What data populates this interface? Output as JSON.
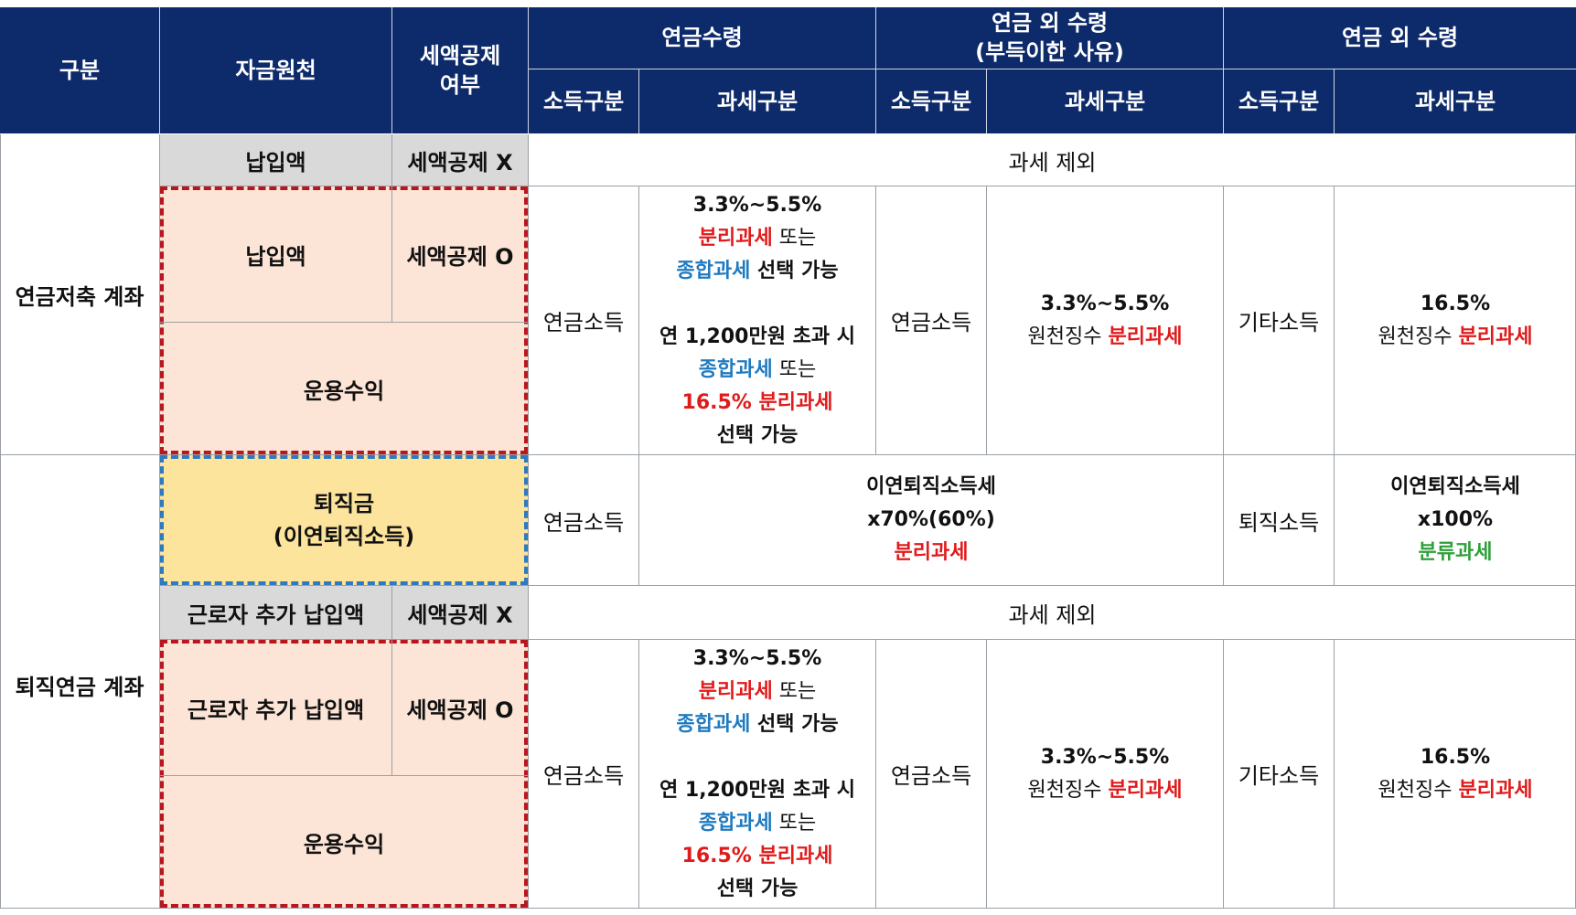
{
  "header": {
    "category": "구분",
    "fund_source": "자금원천",
    "tax_credit": "세액공제\n여부",
    "pension_receipt": "연금수령",
    "non_pension_unavoidable": "연금 외 수령\n(부득이한 사유)",
    "non_pension": "연금 외 수령",
    "income_type": "소득구분",
    "tax_type": "과세구분"
  },
  "section1": {
    "name": "연금저축 계좌",
    "row_a": {
      "source": "납입액",
      "credit": "세액공제 X",
      "tax": "과세 제외"
    },
    "row_b": {
      "source": "납입액",
      "credit": "세액공제 O"
    },
    "row_c": {
      "source": "운용수익"
    },
    "pension_income": "연금소득",
    "tax1": {
      "l1": "3.3%~5.5%",
      "l2a": "분리과세",
      "l2b": " 또는",
      "l3a": "종합과세",
      "l3b": " 선택 가능",
      "l4": "연 1,200만원 초과 시",
      "l5a": "종합과세",
      "l5b": " 또는",
      "l6": "16.5% 분리과세",
      "l7": "선택 가능"
    },
    "unavoidable_income": "연금소득",
    "tax2": {
      "l1": "3.3%~5.5%",
      "l2a": "원천징수 ",
      "l2b": "분리과세"
    },
    "other_income": "기타소득",
    "tax3": {
      "l1": "16.5%",
      "l2a": "원천징수 ",
      "l2b": "분리과세"
    }
  },
  "section2": {
    "name": "퇴직연금 계좌",
    "severance": {
      "l1": "퇴직금",
      "l2": "(이연퇴직소득)"
    },
    "severance_income": "연금소득",
    "severance_tax": {
      "l1": "이연퇴직소득세",
      "l2": "x70%(60%)",
      "l3": "분리과세"
    },
    "retirement_income": "퇴직소득",
    "retirement_tax": {
      "l1": "이연퇴직소득세",
      "l2": "x100%",
      "l3": "분류과세"
    },
    "row_a": {
      "source": "근로자 추가 납입액",
      "credit": "세액공제 X",
      "tax": "과세 제외"
    },
    "row_b": {
      "source": "근로자 추가 납입액",
      "credit": "세액공제 O"
    },
    "row_c": {
      "source": "운용수익"
    },
    "pension_income": "연금소득",
    "tax1": {
      "l1": "3.3%~5.5%",
      "l2a": "분리과세",
      "l2b": " 또는",
      "l3a": "종합과세",
      "l3b": " 선택 가능",
      "l4": "연 1,200만원 초과 시",
      "l5a": "종합과세",
      "l5b": " 또는",
      "l6": "16.5% 분리과세",
      "l7": "선택 가능"
    },
    "unavoidable_income": "연금소득",
    "tax2": {
      "l1": "3.3%~5.5%",
      "l2a": "원천징수 ",
      "l2b": "분리과세"
    },
    "other_income": "기타소득",
    "tax3": {
      "l1": "16.5%",
      "l2a": "원천징수 ",
      "l2b": "분리과세"
    }
  },
  "colors": {
    "header_bg": "#0d2a6a",
    "red": "#e01b1b",
    "blue": "#1f7ac0",
    "green": "#2ea03b",
    "peach": "#fce5d6",
    "yellow": "#fce49c",
    "gray": "#d9d9d9"
  }
}
